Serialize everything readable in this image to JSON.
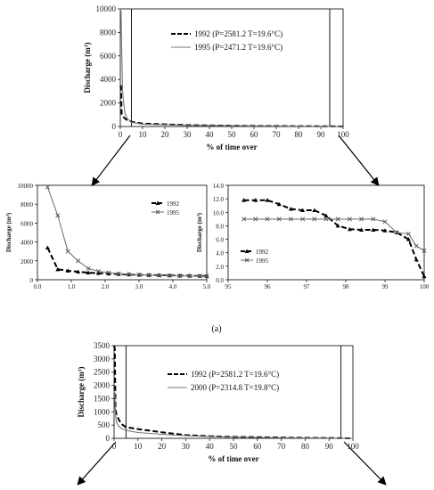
{
  "panel_label": "(a)",
  "chart_data": [
    {
      "id": "top",
      "type": "line",
      "xlabel": "% of time over",
      "ylabel": "Discharge (m³)",
      "xlim": [
        0,
        100
      ],
      "ylim": [
        0,
        10000
      ],
      "xticks": [
        "0",
        "10",
        "20",
        "30",
        "40",
        "50",
        "60",
        "70",
        "80",
        "90",
        "100"
      ],
      "yticks": [
        "0",
        "2000",
        "4000",
        "6000",
        "8000",
        "10000"
      ],
      "legend_position": "upper-center",
      "series": [
        {
          "name": "1992 (P=2581.2  T=19.6°C)",
          "style": "dashed",
          "x": [
            0,
            0.3,
            0.6,
            1,
            2,
            3,
            5,
            10,
            20,
            30,
            40,
            50,
            60,
            70,
            80,
            90,
            95,
            99,
            100
          ],
          "y": [
            3500,
            3400,
            1100,
            900,
            700,
            550,
            400,
            250,
            180,
            120,
            90,
            70,
            55,
            45,
            30,
            20,
            15,
            10,
            0
          ]
        },
        {
          "name": "1995 (P=2471.2  T=19.6°C)",
          "style": "solid",
          "x": [
            0,
            0.3,
            0.6,
            1,
            2,
            3,
            5,
            10,
            20,
            30,
            40,
            50,
            60,
            70,
            80,
            90,
            95,
            99,
            100
          ],
          "y": [
            10000,
            9800,
            6800,
            3000,
            1200,
            700,
            350,
            200,
            150,
            100,
            80,
            60,
            45,
            35,
            25,
            15,
            10,
            8,
            0
          ]
        }
      ],
      "marker_lines_x": [
        5,
        94
      ]
    },
    {
      "id": "left-zoom",
      "type": "line",
      "xlabel": "",
      "ylabel": "Discharge (m³)",
      "xlim": [
        0,
        5
      ],
      "ylim": [
        0,
        10000
      ],
      "xticks": [
        "0.0",
        "1.0",
        "2.0",
        "3.0",
        "4.0",
        "5.0"
      ],
      "yticks": [
        "0",
        "2000",
        "4000",
        "6000",
        "8000",
        "10000"
      ],
      "legend_position": "top-right",
      "series": [
        {
          "name": "1992",
          "marker": "triangle",
          "style": "dashed",
          "x": [
            0.3,
            0.6,
            0.9,
            1.2,
            1.5,
            1.8,
            2.1,
            2.4,
            2.7,
            3.0,
            3.3,
            3.6,
            3.9,
            4.2,
            4.5,
            4.8,
            5.0
          ],
          "y": [
            3400,
            1100,
            950,
            850,
            750,
            700,
            650,
            600,
            550,
            520,
            500,
            480,
            460,
            440,
            420,
            410,
            400
          ]
        },
        {
          "name": "1995",
          "marker": "x",
          "style": "solid",
          "x": [
            0.3,
            0.6,
            0.9,
            1.2,
            1.5,
            1.8,
            2.1,
            2.4,
            2.7,
            3.0,
            3.3,
            3.6,
            3.9,
            4.2,
            4.5,
            4.8,
            5.0
          ],
          "y": [
            9800,
            6800,
            3000,
            2000,
            1200,
            900,
            750,
            650,
            580,
            530,
            490,
            460,
            440,
            420,
            400,
            390,
            380
          ]
        }
      ]
    },
    {
      "id": "right-zoom",
      "type": "line",
      "xlabel": "",
      "ylabel": "Discharge (m³)",
      "xlim": [
        95,
        100
      ],
      "ylim": [
        0,
        14
      ],
      "xticks": [
        "95",
        "96",
        "97",
        "98",
        "99",
        "100"
      ],
      "yticks": [
        "0.0",
        "2.0",
        "4.0",
        "6.0",
        "8.0",
        "10.0",
        "12.0",
        "14.0"
      ],
      "legend_position": "bottom-left",
      "series": [
        {
          "name": "1992",
          "marker": "triangle",
          "style": "dashed",
          "x": [
            95.4,
            95.7,
            96.0,
            96.3,
            96.6,
            96.9,
            97.2,
            97.5,
            97.8,
            98.1,
            98.4,
            98.7,
            99.0,
            99.3,
            99.6,
            99.8,
            100
          ],
          "y": [
            11.8,
            11.8,
            11.8,
            11.2,
            10.5,
            10.3,
            10.3,
            9.5,
            8.0,
            7.5,
            7.4,
            7.4,
            7.3,
            7.0,
            6.0,
            3.0,
            0.5
          ]
        },
        {
          "name": "1995",
          "marker": "x",
          "style": "solid",
          "x": [
            95.4,
            95.7,
            96.0,
            96.3,
            96.6,
            96.9,
            97.2,
            97.5,
            97.8,
            98.1,
            98.4,
            98.7,
            99.0,
            99.3,
            99.6,
            99.8,
            100
          ],
          "y": [
            9.0,
            9.0,
            9.0,
            9.0,
            9.0,
            9.0,
            9.0,
            9.0,
            9.0,
            9.0,
            9.0,
            9.0,
            8.6,
            7.0,
            6.8,
            5.0,
            4.3
          ]
        }
      ]
    },
    {
      "id": "bottom",
      "type": "line",
      "xlabel": "% of time over",
      "ylabel": "Discharge (m³)",
      "xlim": [
        0,
        100
      ],
      "ylim": [
        0,
        3500
      ],
      "xticks": [
        "0",
        "10",
        "20",
        "30",
        "40",
        "50",
        "60",
        "70",
        "80",
        "90",
        "100"
      ],
      "yticks": [
        "0",
        "500",
        "1000",
        "1500",
        "2000",
        "2500",
        "3000",
        "3500"
      ],
      "legend_position": "upper-center",
      "series": [
        {
          "name": "1992 (P=2581.2  T=19.6°C)",
          "style": "dashed",
          "x": [
            0,
            0.3,
            0.6,
            1,
            2,
            3,
            5,
            10,
            20,
            30,
            40,
            50,
            60,
            70,
            80,
            90,
            95,
            100
          ],
          "y": [
            3500,
            3400,
            1100,
            900,
            700,
            550,
            420,
            350,
            230,
            120,
            80,
            55,
            45,
            30,
            20,
            12,
            8,
            0
          ]
        },
        {
          "name": "2000 (P=2314.8  T=19.8°C)",
          "style": "solid",
          "x": [
            0,
            0.3,
            0.6,
            1,
            2,
            3,
            5,
            10,
            20,
            30,
            40,
            50,
            60,
            70,
            80,
            90,
            95,
            100
          ],
          "y": [
            1800,
            1700,
            900,
            600,
            450,
            380,
            300,
            220,
            150,
            100,
            70,
            50,
            35,
            25,
            15,
            10,
            5,
            0
          ]
        }
      ],
      "marker_lines_x": [
        5,
        95
      ]
    }
  ]
}
